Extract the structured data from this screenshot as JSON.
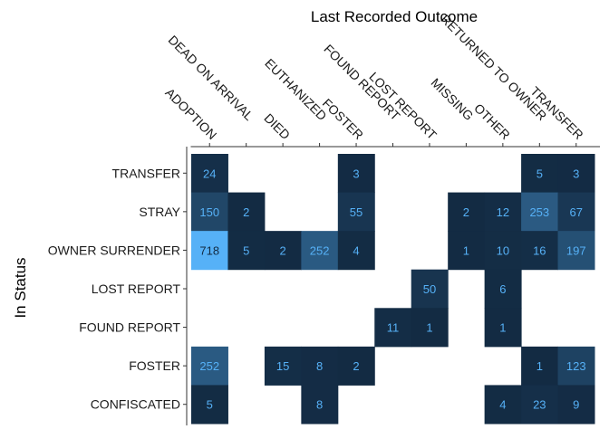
{
  "colors": {
    "low": "#132b43",
    "high": "#56b1f7",
    "label_on_dark": "#56b1f7",
    "label_on_light": "#132b43",
    "axis": "#333333"
  },
  "chart_data": {
    "type": "heatmap",
    "title": "",
    "xlabel": "Last Recorded Outcome",
    "ylabel": "In Status",
    "x_axis_position": "top",
    "grid": false,
    "legend": "none",
    "x_categories": [
      "ADOPTION",
      "DEAD ON ARRIVAL",
      "DIED",
      "EUTHANIZED",
      "FOSTER",
      "FOUND REPORT",
      "LOST REPORT",
      "MISSING",
      "OTHER",
      "RETURNED TO OWNER",
      "TRANSFER"
    ],
    "y_categories": [
      "TRANSFER",
      "STRAY",
      "OWNER SURRENDER",
      "LOST REPORT",
      "FOUND REPORT",
      "FOSTER",
      "CONFISCATED"
    ],
    "cells": [
      {
        "row": "TRANSFER",
        "col": "ADOPTION",
        "value": 24
      },
      {
        "row": "TRANSFER",
        "col": "FOSTER",
        "value": 3
      },
      {
        "row": "TRANSFER",
        "col": "RETURNED TO OWNER",
        "value": 5
      },
      {
        "row": "TRANSFER",
        "col": "TRANSFER",
        "value": 3
      },
      {
        "row": "STRAY",
        "col": "ADOPTION",
        "value": 150
      },
      {
        "row": "STRAY",
        "col": "DEAD ON ARRIVAL",
        "value": 2
      },
      {
        "row": "STRAY",
        "col": "FOSTER",
        "value": 55
      },
      {
        "row": "STRAY",
        "col": "MISSING",
        "value": 2
      },
      {
        "row": "STRAY",
        "col": "OTHER",
        "value": 12
      },
      {
        "row": "STRAY",
        "col": "RETURNED TO OWNER",
        "value": 253
      },
      {
        "row": "STRAY",
        "col": "TRANSFER",
        "value": 67
      },
      {
        "row": "OWNER SURRENDER",
        "col": "ADOPTION",
        "value": 718
      },
      {
        "row": "OWNER SURRENDER",
        "col": "DEAD ON ARRIVAL",
        "value": 5
      },
      {
        "row": "OWNER SURRENDER",
        "col": "DIED",
        "value": 2
      },
      {
        "row": "OWNER SURRENDER",
        "col": "EUTHANIZED",
        "value": 252
      },
      {
        "row": "OWNER SURRENDER",
        "col": "FOSTER",
        "value": 4
      },
      {
        "row": "OWNER SURRENDER",
        "col": "MISSING",
        "value": 1
      },
      {
        "row": "OWNER SURRENDER",
        "col": "OTHER",
        "value": 10
      },
      {
        "row": "OWNER SURRENDER",
        "col": "RETURNED TO OWNER",
        "value": 16
      },
      {
        "row": "OWNER SURRENDER",
        "col": "TRANSFER",
        "value": 197
      },
      {
        "row": "LOST REPORT",
        "col": "LOST REPORT",
        "value": 50
      },
      {
        "row": "LOST REPORT",
        "col": "OTHER",
        "value": 6
      },
      {
        "row": "FOUND REPORT",
        "col": "FOUND REPORT",
        "value": 11
      },
      {
        "row": "FOUND REPORT",
        "col": "LOST REPORT",
        "value": 1
      },
      {
        "row": "FOUND REPORT",
        "col": "OTHER",
        "value": 1
      },
      {
        "row": "FOSTER",
        "col": "ADOPTION",
        "value": 252
      },
      {
        "row": "FOSTER",
        "col": "DIED",
        "value": 15
      },
      {
        "row": "FOSTER",
        "col": "EUTHANIZED",
        "value": 8
      },
      {
        "row": "FOSTER",
        "col": "FOSTER",
        "value": 2
      },
      {
        "row": "FOSTER",
        "col": "RETURNED TO OWNER",
        "value": 1
      },
      {
        "row": "FOSTER",
        "col": "TRANSFER",
        "value": 123
      },
      {
        "row": "CONFISCATED",
        "col": "ADOPTION",
        "value": 5
      },
      {
        "row": "CONFISCATED",
        "col": "EUTHANIZED",
        "value": 8
      },
      {
        "row": "CONFISCATED",
        "col": "OTHER",
        "value": 4
      },
      {
        "row": "CONFISCATED",
        "col": "RETURNED TO OWNER",
        "value": 23
      },
      {
        "row": "CONFISCATED",
        "col": "TRANSFER",
        "value": 9
      }
    ]
  }
}
